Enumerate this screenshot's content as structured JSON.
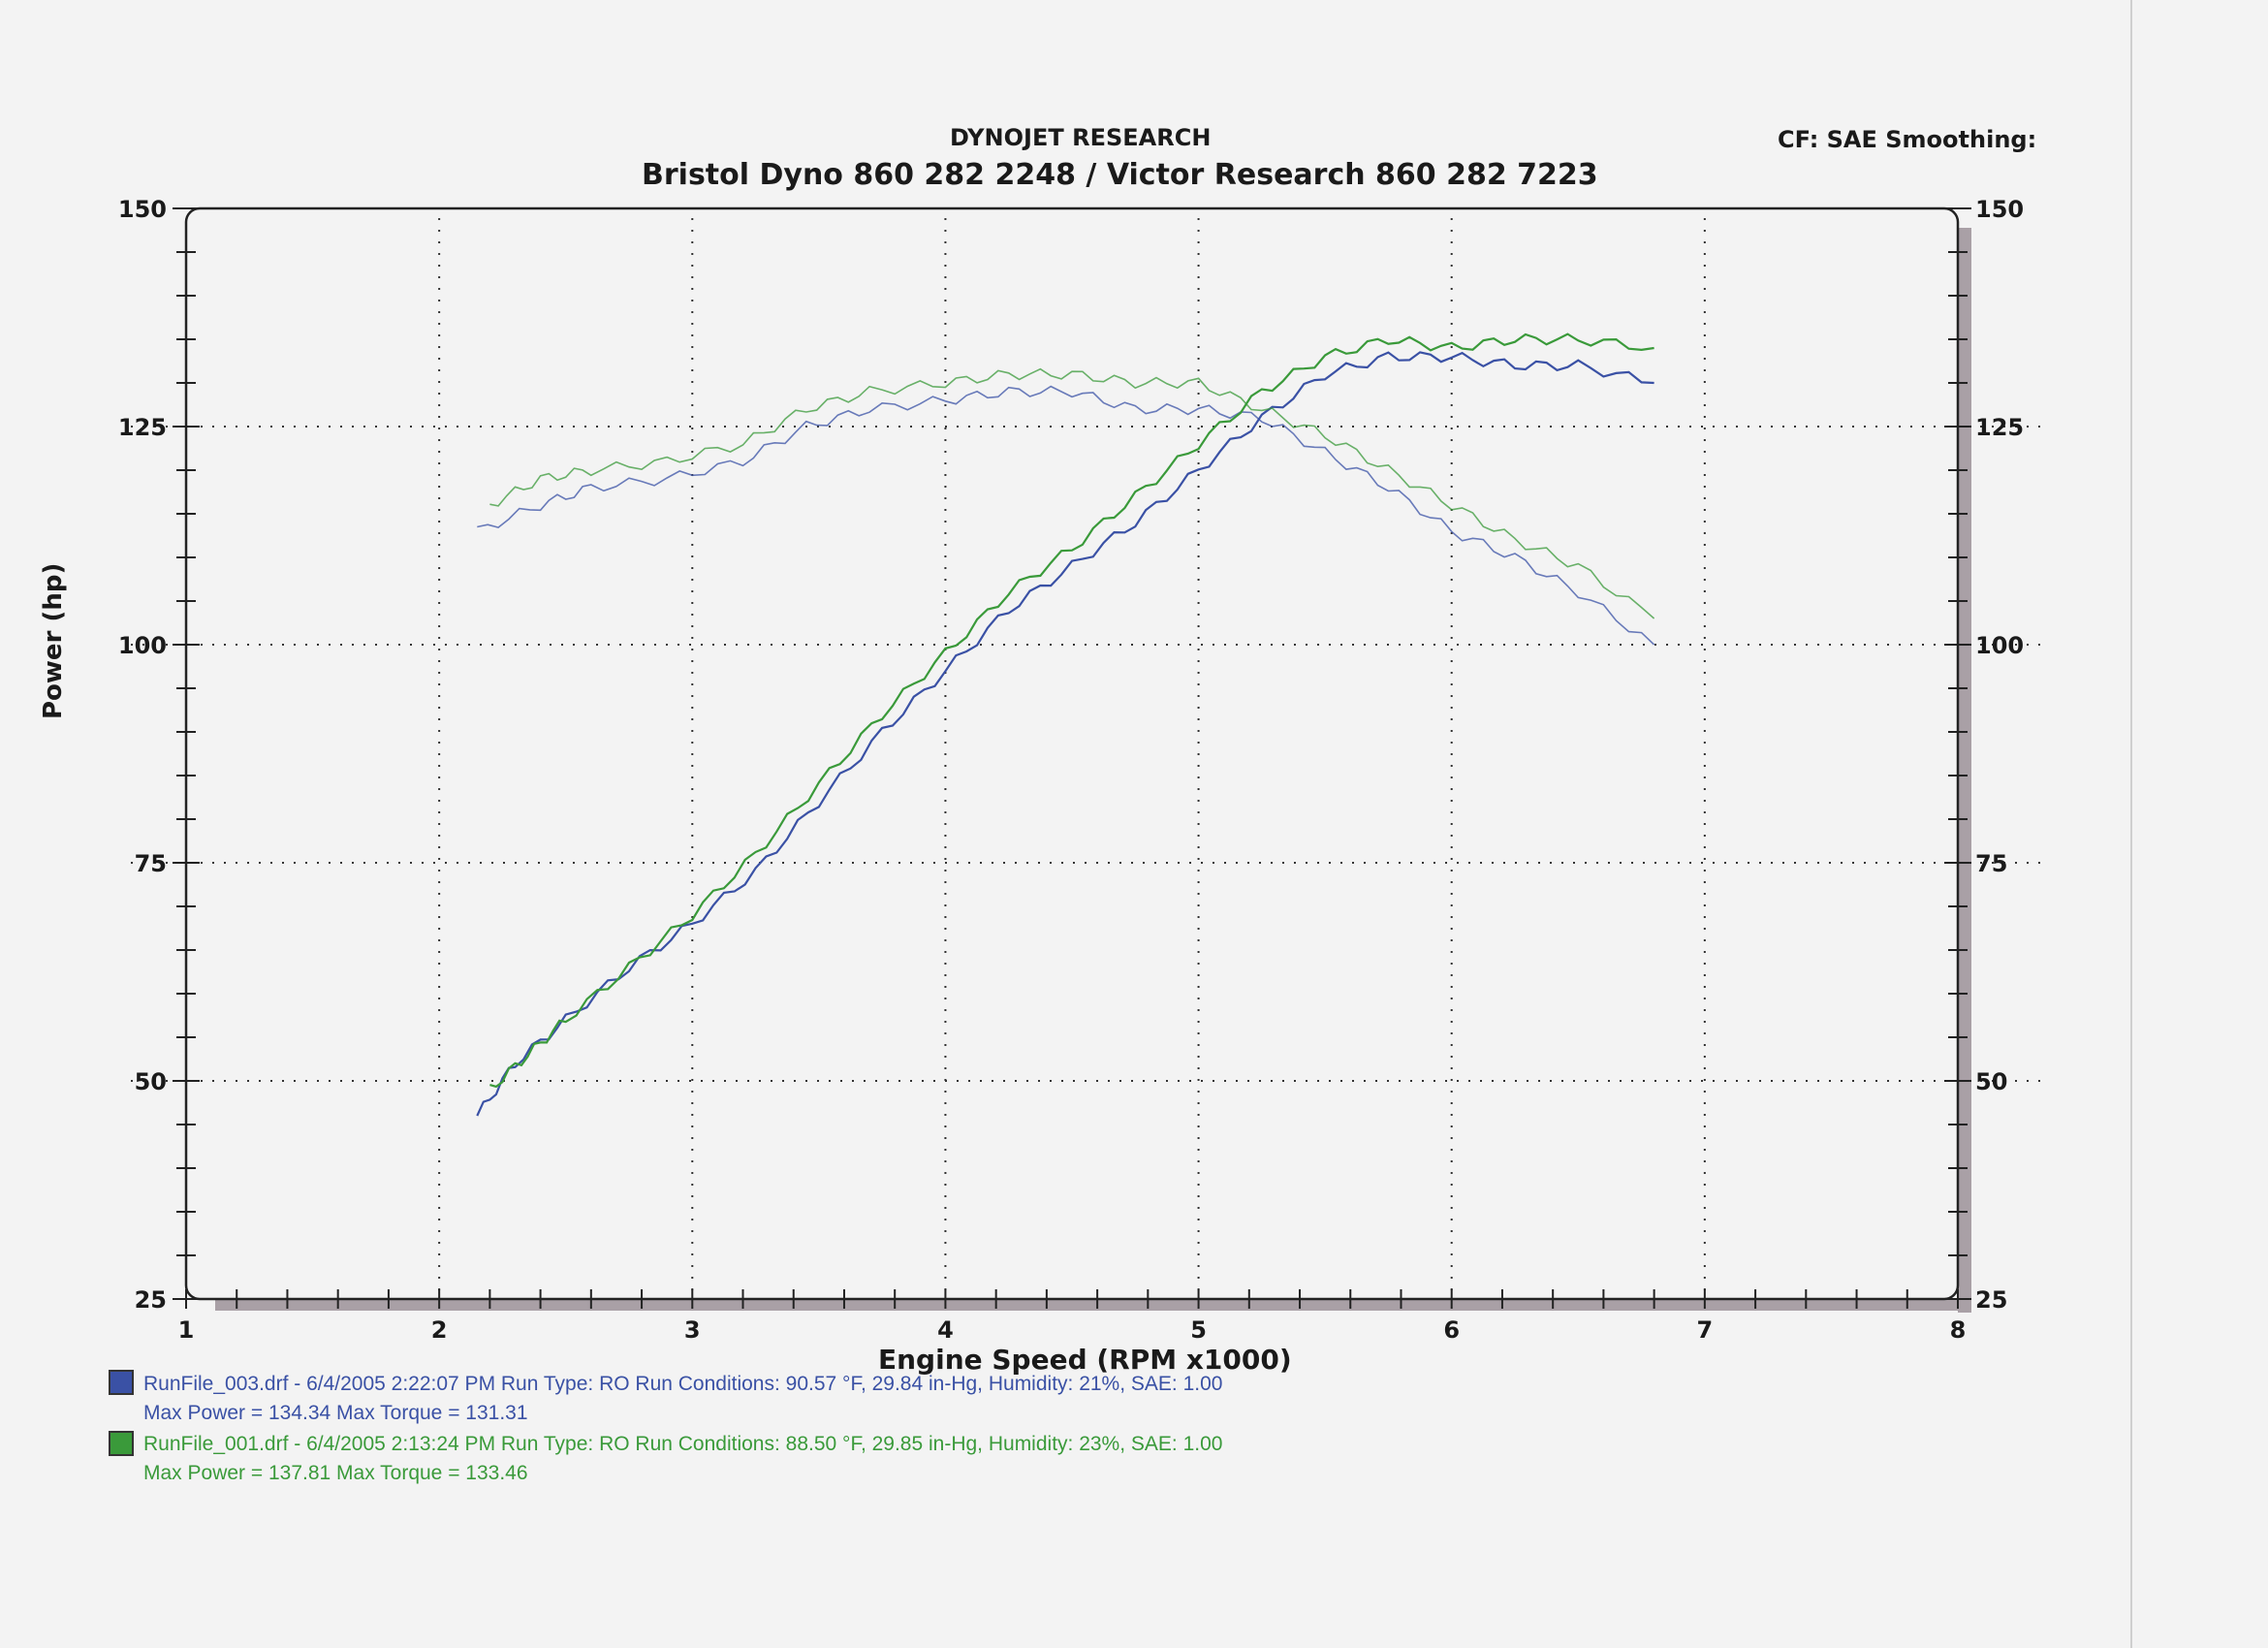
{
  "header": {
    "company": "DYNOJET RESEARCH",
    "shop": "Bristol Dyno 860 282 2248  /  Victor Research 860 282 7223",
    "correction": "CF: SAE  Smoothing:"
  },
  "legend": [
    {
      "color": "#3a51a5",
      "line1": "RunFile_003.drf - 6/4/2005 2:22:07 PM  Run Type: RO  Run Conditions: 90.57 °F, 29.84 in-Hg,  Humidity:  21%, SAE: 1.00",
      "line2": "Max Power = 134.34  Max Torque = 131.31"
    },
    {
      "color": "#3a9a3a",
      "line1": "RunFile_001.drf - 6/4/2005 2:13:24 PM  Run Type: RO  Run Conditions: 88.50 °F, 29.85 in-Hg,  Humidity:  23%, SAE: 1.00",
      "line2": "Max Power = 137.81  Max Torque = 133.46"
    }
  ],
  "chart_data": {
    "type": "line",
    "title": "DYNOJET RESEARCH",
    "subtitle": "Bristol Dyno 860 282 2248  /  Victor Research 860 282 7223",
    "xlabel": "Engine Speed (RPM x1000)",
    "ylabel": "Power (hp)",
    "xlim": [
      1,
      8
    ],
    "ylim": [
      25,
      150
    ],
    "xticks": [
      "1",
      "2",
      "3",
      "4",
      "5",
      "6",
      "7",
      "8"
    ],
    "yticks_left": [
      "150",
      "125",
      "100",
      "75",
      "50",
      "25"
    ],
    "yticks_right": [
      "150",
      "125",
      "100",
      "75",
      "50",
      "25"
    ],
    "grid": true,
    "series": [
      {
        "name": "RunFile_003.drf",
        "measure": "power",
        "color": "#3a51a5",
        "x": [
          2.15,
          2.3,
          2.5,
          2.75,
          3.0,
          3.25,
          3.5,
          3.75,
          4.0,
          4.25,
          4.5,
          4.75,
          5.0,
          5.25,
          5.5,
          5.75,
          6.0,
          6.25,
          6.5,
          6.8
        ],
        "values": [
          46,
          52,
          57,
          63,
          68,
          74,
          82,
          90,
          97,
          104,
          109,
          114,
          120,
          126,
          131,
          133,
          133,
          132,
          132,
          130
        ]
      },
      {
        "name": "RunFile_003.drf",
        "measure": "torque",
        "color": "#3a51a5",
        "x": [
          2.15,
          2.4,
          2.6,
          2.9,
          3.2,
          3.45,
          3.7,
          4.0,
          4.25,
          4.5,
          4.75,
          5.0,
          5.25,
          5.5,
          5.75,
          6.0,
          6.25,
          6.5,
          6.8
        ],
        "values": [
          113,
          116,
          118,
          119,
          121,
          125,
          127,
          128,
          129,
          129,
          127,
          127,
          126,
          122,
          118,
          113,
          110,
          106,
          100
        ]
      },
      {
        "name": "RunFile_001.drf",
        "measure": "power",
        "color": "#3a9a3a",
        "x": [
          2.2,
          2.35,
          2.5,
          2.75,
          3.0,
          3.25,
          3.5,
          3.75,
          4.0,
          4.25,
          4.5,
          4.75,
          5.0,
          5.25,
          5.5,
          5.75,
          6.0,
          6.25,
          6.5,
          6.8
        ],
        "values": [
          49,
          53,
          57,
          63,
          69,
          76,
          84,
          92,
          99,
          106,
          111,
          117,
          123,
          129,
          133,
          135,
          134,
          135,
          135,
          134
        ]
      },
      {
        "name": "RunFile_001.drf",
        "measure": "torque",
        "color": "#3a9a3a",
        "x": [
          2.2,
          2.4,
          2.6,
          2.9,
          3.2,
          3.45,
          3.7,
          4.0,
          4.25,
          4.5,
          4.75,
          5.0,
          5.25,
          5.5,
          5.75,
          6.0,
          6.25,
          6.5,
          6.8
        ],
        "values": [
          116,
          119,
          120,
          121,
          123,
          127,
          129,
          130,
          131,
          131,
          130,
          130,
          127,
          124,
          120,
          116,
          112,
          109,
          103
        ]
      }
    ]
  }
}
